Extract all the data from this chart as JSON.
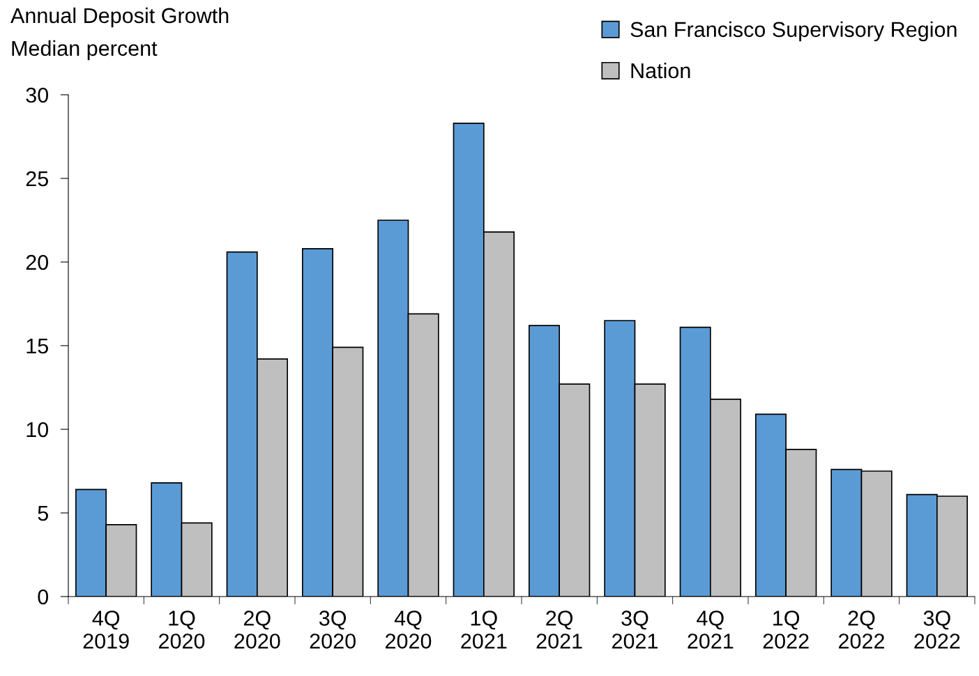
{
  "chart_data": {
    "type": "bar",
    "title": "Annual Deposit Growth",
    "ylabel": "Median percent",
    "categories": [
      "4Q\n2019",
      "1Q\n2020",
      "2Q\n2020",
      "3Q\n2020",
      "4Q\n2020",
      "1Q\n2021",
      "2Q\n2021",
      "3Q\n2021",
      "4Q\n2021",
      "1Q\n2022",
      "2Q\n2022",
      "3Q\n2022"
    ],
    "series": [
      {
        "name": "San Francisco Supervisory Region",
        "color": "#5b9bd5",
        "values": [
          6.4,
          6.8,
          20.6,
          20.8,
          22.5,
          28.3,
          16.2,
          16.5,
          16.1,
          10.9,
          7.6,
          6.1
        ]
      },
      {
        "name": "Nation",
        "color": "#bfbfbf",
        "values": [
          4.3,
          4.4,
          14.2,
          14.9,
          16.9,
          21.8,
          12.7,
          12.7,
          11.8,
          8.8,
          7.5,
          6.0
        ]
      }
    ],
    "ylim": [
      0,
      30
    ],
    "yticks": [
      0,
      5,
      10,
      15,
      20,
      25,
      30
    ],
    "grid": false,
    "legend": "top right"
  }
}
